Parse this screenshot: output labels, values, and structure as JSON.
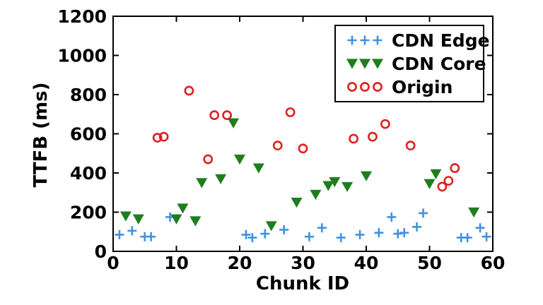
{
  "figure": {
    "background": "#ffffff",
    "axis_color": "#000000"
  },
  "chart_data": {
    "type": "scatter",
    "title": "",
    "xlabel": "Chunk ID",
    "ylabel": "TTFB (ms)",
    "xlim": [
      0,
      60
    ],
    "ylim": [
      0,
      1200
    ],
    "xticks": [
      0,
      10,
      20,
      30,
      40,
      50,
      60
    ],
    "yticks": [
      0,
      200,
      400,
      600,
      800,
      1000,
      1200
    ],
    "grid": false,
    "legend_position": "upper right",
    "legend_markers_per_item": 3,
    "series": [
      {
        "name": "CDN Edge",
        "marker": "plus",
        "color": "#4191e1",
        "points": [
          [
            1,
            85
          ],
          [
            3,
            105
          ],
          [
            5,
            75
          ],
          [
            6,
            75
          ],
          [
            9,
            175
          ],
          [
            21,
            85
          ],
          [
            22,
            70
          ],
          [
            24,
            90
          ],
          [
            27,
            110
          ],
          [
            31,
            75
          ],
          [
            33,
            120
          ],
          [
            36,
            70
          ],
          [
            39,
            85
          ],
          [
            42,
            95
          ],
          [
            44,
            175
          ],
          [
            45,
            90
          ],
          [
            46,
            95
          ],
          [
            48,
            125
          ],
          [
            49,
            195
          ],
          [
            55,
            70
          ],
          [
            56,
            70
          ],
          [
            58,
            120
          ],
          [
            59,
            75
          ]
        ]
      },
      {
        "name": "CDN Core",
        "marker": "triangle-down",
        "color": "#1e7e1e",
        "points": [
          [
            2,
            180
          ],
          [
            4,
            165
          ],
          [
            10,
            165
          ],
          [
            11,
            220
          ],
          [
            13,
            155
          ],
          [
            14,
            350
          ],
          [
            17,
            370
          ],
          [
            19,
            655
          ],
          [
            20,
            470
          ],
          [
            23,
            425
          ],
          [
            25,
            130
          ],
          [
            29,
            250
          ],
          [
            32,
            290
          ],
          [
            34,
            335
          ],
          [
            35,
            355
          ],
          [
            37,
            330
          ],
          [
            40,
            385
          ],
          [
            50,
            345
          ],
          [
            51,
            395
          ],
          [
            57,
            200
          ]
        ]
      },
      {
        "name": "Origin",
        "marker": "circle-open",
        "color": "#de2020",
        "points": [
          [
            7,
            580
          ],
          [
            8,
            585
          ],
          [
            12,
            820
          ],
          [
            15,
            470
          ],
          [
            16,
            695
          ],
          [
            18,
            695
          ],
          [
            26,
            540
          ],
          [
            28,
            710
          ],
          [
            30,
            525
          ],
          [
            38,
            575
          ],
          [
            41,
            585
          ],
          [
            43,
            650
          ],
          [
            47,
            540
          ],
          [
            52,
            330
          ],
          [
            53,
            360
          ],
          [
            54,
            425
          ]
        ]
      }
    ]
  }
}
